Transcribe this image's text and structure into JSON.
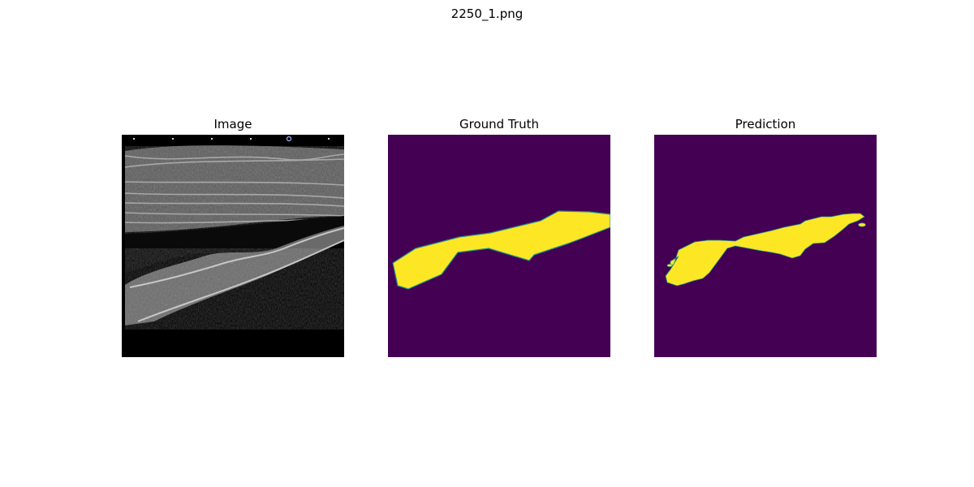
{
  "figure": {
    "suptitle": "2250_1.png",
    "panels": [
      {
        "title": "Image",
        "content": "ultrasound-grayscale"
      },
      {
        "title": "Ground Truth",
        "content": "segmentation-mask"
      },
      {
        "title": "Prediction",
        "content": "segmentation-mask"
      }
    ]
  },
  "colors": {
    "background": "#ffffff",
    "mask_background": "#440154",
    "mask_foreground": "#fde725",
    "mask_edge": "#21918c",
    "ultrasound_dark": "#000000"
  }
}
